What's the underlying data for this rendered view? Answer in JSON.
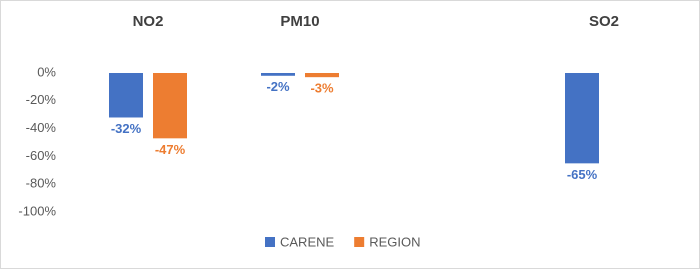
{
  "chart_data": {
    "type": "bar",
    "categories": [
      "NO2",
      "PM10",
      null,
      "SO2"
    ],
    "series": [
      {
        "name": "CARENE",
        "color": "#4472c4",
        "values": [
          -32,
          -2,
          null,
          -65
        ],
        "value_labels": [
          "-32%",
          "-2%",
          null,
          "-65%"
        ]
      },
      {
        "name": "REGION",
        "color": "#ed7d31",
        "values": [
          -47,
          -3,
          null,
          null
        ],
        "value_labels": [
          "-47%",
          "-3%",
          null,
          null
        ]
      }
    ],
    "ylim": [
      -100,
      0
    ],
    "yticks": [
      {
        "value": 0,
        "label": "0%"
      },
      {
        "value": -20,
        "label": "-20%"
      },
      {
        "value": -40,
        "label": "-40%"
      },
      {
        "value": -60,
        "label": "-60%"
      },
      {
        "value": -80,
        "label": "-80%"
      },
      {
        "value": -100,
        "label": "-100%"
      }
    ],
    "grid": false
  }
}
